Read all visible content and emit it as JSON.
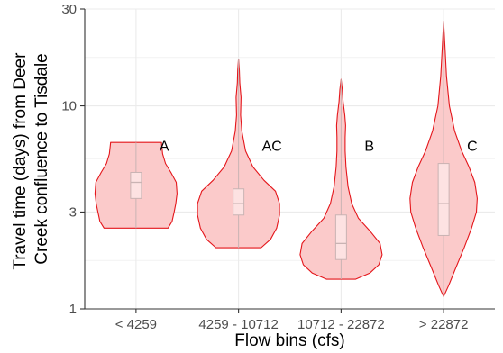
{
  "chart_data": {
    "type": "violin",
    "title": "",
    "xlabel": "Flow bins (cfs)",
    "ylabel": "Travel time (days) from Deer Creek confluence to Tisdale",
    "ylabel_lines": [
      "Travel time (days) from Deer",
      "Creek confluence to Tisdale"
    ],
    "y_scale": "log",
    "ylim": [
      1,
      30
    ],
    "y_ticks": [
      1,
      3,
      10,
      30
    ],
    "y_tick_labels": [
      "1",
      "3",
      "10",
      "30"
    ],
    "grid": true,
    "categories": [
      "< 4259",
      "4259 - 10712",
      "10712 - 22872",
      "> 22872"
    ],
    "violins": [
      {
        "label": "< 4259",
        "annotation": "A",
        "min": 2.5,
        "max": 6.6,
        "q1": 3.5,
        "median": 4.2,
        "q3": 4.7,
        "profile": [
          [
            2.5,
            0.78
          ],
          [
            2.7,
            0.88
          ],
          [
            3.0,
            0.93
          ],
          [
            3.3,
            0.97
          ],
          [
            3.7,
            1.0
          ],
          [
            4.2,
            0.98
          ],
          [
            4.7,
            0.85
          ],
          [
            5.2,
            0.72
          ],
          [
            5.8,
            0.65
          ],
          [
            6.3,
            0.63
          ],
          [
            6.6,
            0.62
          ]
        ]
      },
      {
        "label": "4259 - 10712",
        "annotation": "AC",
        "min": 2.0,
        "max": 17.0,
        "q1": 2.9,
        "median": 3.3,
        "q3": 3.9,
        "profile": [
          [
            2.0,
            0.55
          ],
          [
            2.2,
            0.78
          ],
          [
            2.5,
            0.93
          ],
          [
            2.9,
            1.0
          ],
          [
            3.3,
            1.0
          ],
          [
            3.8,
            0.9
          ],
          [
            4.3,
            0.62
          ],
          [
            5.0,
            0.35
          ],
          [
            6.0,
            0.17
          ],
          [
            7.5,
            0.08
          ],
          [
            9.0,
            0.05
          ],
          [
            11.0,
            0.06
          ],
          [
            13.0,
            0.03
          ],
          [
            15.0,
            0.02
          ],
          [
            17.0,
            0.0
          ]
        ]
      },
      {
        "label": "10712 - 22872",
        "annotation": "B",
        "min": 1.4,
        "max": 13.5,
        "q1": 1.75,
        "median": 2.1,
        "q3": 2.9,
        "profile": [
          [
            1.4,
            0.35
          ],
          [
            1.5,
            0.7
          ],
          [
            1.65,
            0.92
          ],
          [
            1.85,
            1.0
          ],
          [
            2.1,
            0.95
          ],
          [
            2.4,
            0.72
          ],
          [
            2.8,
            0.42
          ],
          [
            3.3,
            0.26
          ],
          [
            4.0,
            0.17
          ],
          [
            5.0,
            0.12
          ],
          [
            6.0,
            0.1
          ],
          [
            7.0,
            0.1
          ],
          [
            8.0,
            0.11
          ],
          [
            9.0,
            0.09
          ],
          [
            10.5,
            0.05
          ],
          [
            12.0,
            0.03
          ],
          [
            13.5,
            0.0
          ]
        ]
      },
      {
        "label": "> 22872",
        "annotation": "C",
        "min": 1.15,
        "max": 26.0,
        "q1": 2.3,
        "median": 3.3,
        "q3": 5.2,
        "profile": [
          [
            1.15,
            0.0
          ],
          [
            1.3,
            0.12
          ],
          [
            1.6,
            0.3
          ],
          [
            2.0,
            0.5
          ],
          [
            2.5,
            0.68
          ],
          [
            3.0,
            0.8
          ],
          [
            3.5,
            0.82
          ],
          [
            4.2,
            0.76
          ],
          [
            5.0,
            0.62
          ],
          [
            6.0,
            0.44
          ],
          [
            7.5,
            0.27
          ],
          [
            10.0,
            0.14
          ],
          [
            14.0,
            0.07
          ],
          [
            20.0,
            0.03
          ],
          [
            26.0,
            0.0
          ]
        ]
      }
    ],
    "colors": {
      "fill": "#fbcaca",
      "stroke": "#e4161b",
      "box_fill": "#fde2e2",
      "box_stroke": "#c9b3b3",
      "grid": "#ebebeb",
      "axis": "#333333"
    }
  }
}
